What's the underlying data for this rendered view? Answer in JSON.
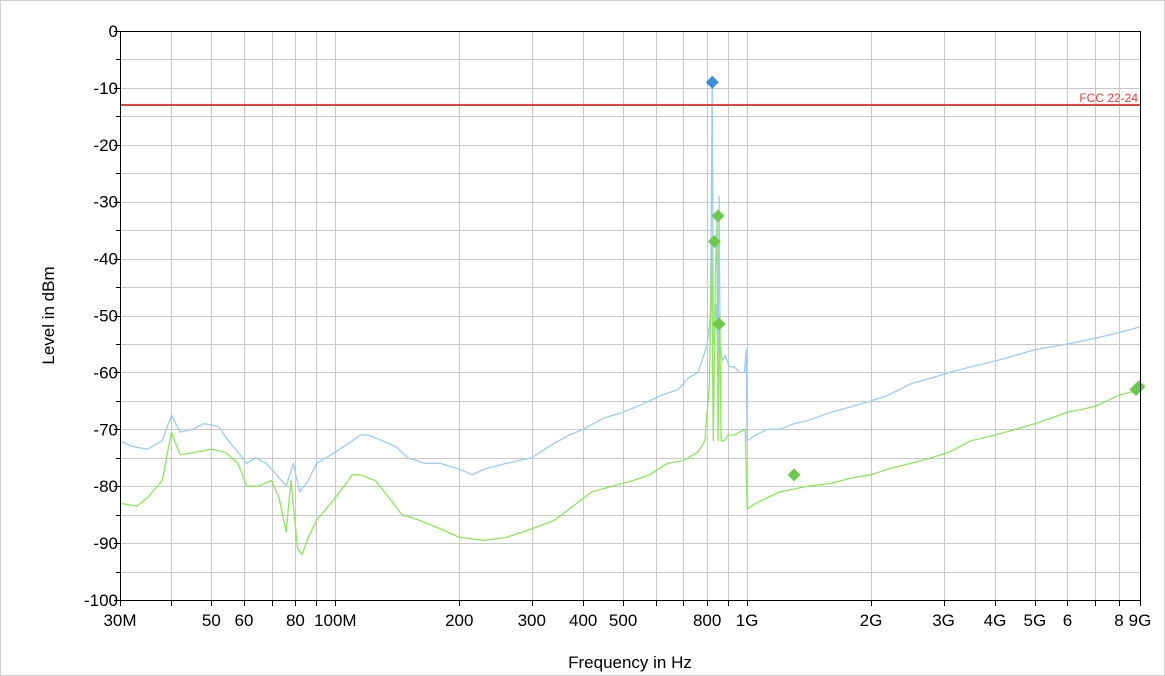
{
  "chart_data": {
    "type": "line",
    "title": "",
    "xlabel": "Frequency in Hz",
    "ylabel": "Level in dBm",
    "x_scale": "log",
    "xlim": [
      30000000,
      9000000000
    ],
    "ylim": [
      -100,
      0
    ],
    "grid": true,
    "x_tick_labels": [
      {
        "value": 30000000,
        "label": "30M"
      },
      {
        "value": 50000000,
        "label": "50"
      },
      {
        "value": 60000000,
        "label": "60"
      },
      {
        "value": 80000000,
        "label": "80"
      },
      {
        "value": 100000000,
        "label": "100M"
      },
      {
        "value": 200000000,
        "label": "200"
      },
      {
        "value": 300000000,
        "label": "300"
      },
      {
        "value": 400000000,
        "label": "400"
      },
      {
        "value": 500000000,
        "label": "500"
      },
      {
        "value": 800000000,
        "label": "800"
      },
      {
        "value": 1000000000,
        "label": "1G"
      },
      {
        "value": 2000000000,
        "label": "2G"
      },
      {
        "value": 3000000000,
        "label": "3G"
      },
      {
        "value": 4000000000,
        "label": "4G"
      },
      {
        "value": 5000000000,
        "label": "5G"
      },
      {
        "value": 6000000000,
        "label": "6"
      },
      {
        "value": 8000000000,
        "label": "8"
      },
      {
        "value": 9000000000,
        "label": "9G"
      }
    ],
    "y_tick_labels": [
      {
        "value": 0,
        "label": "0"
      },
      {
        "value": -10,
        "label": "-10"
      },
      {
        "value": -20,
        "label": "-20"
      },
      {
        "value": -30,
        "label": "-30"
      },
      {
        "value": -40,
        "label": "-40"
      },
      {
        "value": -50,
        "label": "-50"
      },
      {
        "value": -60,
        "label": "-60"
      },
      {
        "value": -70,
        "label": "-70"
      },
      {
        "value": -80,
        "label": "-80"
      },
      {
        "value": -90,
        "label": "-90"
      },
      {
        "value": -100,
        "label": "-100"
      }
    ],
    "limit_line": {
      "label": "FCC 22-24",
      "y": -13,
      "color": "#e8403c"
    },
    "series": [
      {
        "color": "#9ecbf2",
        "points": [
          [
            30000000,
            -72
          ],
          [
            32000000,
            -73
          ],
          [
            35000000,
            -73.5
          ],
          [
            38000000,
            -72
          ],
          [
            40000000,
            -67.5
          ],
          [
            42000000,
            -70.5
          ],
          [
            45000000,
            -70
          ],
          [
            48000000,
            -69
          ],
          [
            52000000,
            -69.5
          ],
          [
            55000000,
            -72
          ],
          [
            58000000,
            -74
          ],
          [
            61000000,
            -76
          ],
          [
            64000000,
            -75
          ],
          [
            68000000,
            -76
          ],
          [
            72000000,
            -78
          ],
          [
            76000000,
            -80
          ],
          [
            79000000,
            -76
          ],
          [
            82000000,
            -81
          ],
          [
            86000000,
            -79
          ],
          [
            90000000,
            -76
          ],
          [
            95000000,
            -75
          ],
          [
            100000000,
            -74
          ],
          [
            105000000,
            -73
          ],
          [
            110000000,
            -72
          ],
          [
            115000000,
            -71
          ],
          [
            120000000,
            -71
          ],
          [
            130000000,
            -72
          ],
          [
            140000000,
            -73
          ],
          [
            150000000,
            -75
          ],
          [
            165000000,
            -76
          ],
          [
            180000000,
            -76
          ],
          [
            200000000,
            -77
          ],
          [
            215000000,
            -78
          ],
          [
            230000000,
            -77
          ],
          [
            260000000,
            -76
          ],
          [
            300000000,
            -75
          ],
          [
            330000000,
            -73
          ],
          [
            370000000,
            -71
          ],
          [
            400000000,
            -70
          ],
          [
            450000000,
            -68
          ],
          [
            500000000,
            -67
          ],
          [
            560000000,
            -65.5
          ],
          [
            620000000,
            -64
          ],
          [
            680000000,
            -63
          ],
          [
            720000000,
            -61
          ],
          [
            760000000,
            -60
          ],
          [
            785000000,
            -57
          ],
          [
            800000000,
            -55
          ],
          [
            815000000,
            -50
          ],
          [
            823000000,
            -10
          ],
          [
            828000000,
            -55
          ],
          [
            840000000,
            -48
          ],
          [
            850000000,
            -57
          ],
          [
            855000000,
            -29
          ],
          [
            860000000,
            -55
          ],
          [
            870000000,
            -58
          ],
          [
            885000000,
            -57
          ],
          [
            905000000,
            -59
          ],
          [
            930000000,
            -59
          ],
          [
            960000000,
            -60
          ],
          [
            985000000,
            -60
          ],
          [
            995000000,
            -56
          ],
          [
            1000000000,
            -72
          ],
          [
            1050000000,
            -71
          ],
          [
            1120000000,
            -70
          ],
          [
            1200000000,
            -70
          ],
          [
            1300000000,
            -69
          ],
          [
            1400000000,
            -68.5
          ],
          [
            1600000000,
            -67
          ],
          [
            1800000000,
            -66
          ],
          [
            2000000000,
            -65
          ],
          [
            2200000000,
            -64
          ],
          [
            2500000000,
            -62
          ],
          [
            2800000000,
            -61
          ],
          [
            3100000000,
            -60
          ],
          [
            3500000000,
            -59
          ],
          [
            4000000000,
            -58
          ],
          [
            4500000000,
            -57
          ],
          [
            5000000000,
            -56
          ],
          [
            5500000000,
            -55.5
          ],
          [
            6000000000,
            -55
          ],
          [
            7000000000,
            -54
          ],
          [
            8000000000,
            -53
          ],
          [
            9000000000,
            -52
          ]
        ]
      },
      {
        "color": "#8ee65c",
        "points": [
          [
            30000000,
            -83
          ],
          [
            33000000,
            -83.5
          ],
          [
            35000000,
            -82
          ],
          [
            38000000,
            -79
          ],
          [
            40000000,
            -70.5
          ],
          [
            42000000,
            -74.5
          ],
          [
            46000000,
            -74
          ],
          [
            50000000,
            -73.5
          ],
          [
            54000000,
            -74
          ],
          [
            58000000,
            -76
          ],
          [
            61000000,
            -80
          ],
          [
            65000000,
            -80
          ],
          [
            70000000,
            -79
          ],
          [
            73000000,
            -82
          ],
          [
            76000000,
            -88
          ],
          [
            78000000,
            -79
          ],
          [
            81000000,
            -91
          ],
          [
            83000000,
            -92
          ],
          [
            86000000,
            -89
          ],
          [
            90000000,
            -86
          ],
          [
            95000000,
            -84
          ],
          [
            100000000,
            -82
          ],
          [
            105000000,
            -80
          ],
          [
            110000000,
            -78
          ],
          [
            115000000,
            -78
          ],
          [
            125000000,
            -79
          ],
          [
            135000000,
            -82
          ],
          [
            145000000,
            -85
          ],
          [
            160000000,
            -86
          ],
          [
            180000000,
            -87.5
          ],
          [
            200000000,
            -89
          ],
          [
            230000000,
            -89.5
          ],
          [
            260000000,
            -89
          ],
          [
            300000000,
            -87.5
          ],
          [
            340000000,
            -86
          ],
          [
            370000000,
            -84
          ],
          [
            420000000,
            -81
          ],
          [
            470000000,
            -80
          ],
          [
            530000000,
            -79
          ],
          [
            580000000,
            -78
          ],
          [
            640000000,
            -76
          ],
          [
            700000000,
            -75.5
          ],
          [
            760000000,
            -74
          ],
          [
            790000000,
            -72
          ],
          [
            810000000,
            -62
          ],
          [
            820000000,
            -38
          ],
          [
            828000000,
            -72
          ],
          [
            838000000,
            -42
          ],
          [
            845000000,
            -33
          ],
          [
            850000000,
            -72
          ],
          [
            858000000,
            -50
          ],
          [
            865000000,
            -72
          ],
          [
            880000000,
            -72
          ],
          [
            900000000,
            -71
          ],
          [
            930000000,
            -71
          ],
          [
            960000000,
            -70.5
          ],
          [
            990000000,
            -70
          ],
          [
            1000000000,
            -84
          ],
          [
            1050000000,
            -83
          ],
          [
            1120000000,
            -82
          ],
          [
            1200000000,
            -81
          ],
          [
            1300000000,
            -80.5
          ],
          [
            1400000000,
            -80
          ],
          [
            1600000000,
            -79.5
          ],
          [
            1800000000,
            -78.5
          ],
          [
            2000000000,
            -78
          ],
          [
            2200000000,
            -77
          ],
          [
            2500000000,
            -76
          ],
          [
            2800000000,
            -75
          ],
          [
            3100000000,
            -74
          ],
          [
            3500000000,
            -72
          ],
          [
            4000000000,
            -71
          ],
          [
            4500000000,
            -70
          ],
          [
            5000000000,
            -69
          ],
          [
            5500000000,
            -68
          ],
          [
            6000000000,
            -67
          ],
          [
            7000000000,
            -66
          ],
          [
            8000000000,
            -64
          ],
          [
            9000000000,
            -63
          ]
        ]
      }
    ],
    "markers": [
      {
        "x": 823000000,
        "y": -9,
        "color": "#3a8fd9"
      },
      {
        "x": 850000000,
        "y": -32.5,
        "color": "#6dc94a"
      },
      {
        "x": 833000000,
        "y": -37,
        "color": "#6dc94a"
      },
      {
        "x": 855000000,
        "y": -51.5,
        "color": "#6dc94a"
      },
      {
        "x": 1300000000,
        "y": -78,
        "color": "#6dc94a"
      },
      {
        "x": 8800000000,
        "y": -63,
        "color": "#6dc94a"
      },
      {
        "x": 8950000000,
        "y": -62.5,
        "color": "#6dc94a"
      }
    ]
  }
}
